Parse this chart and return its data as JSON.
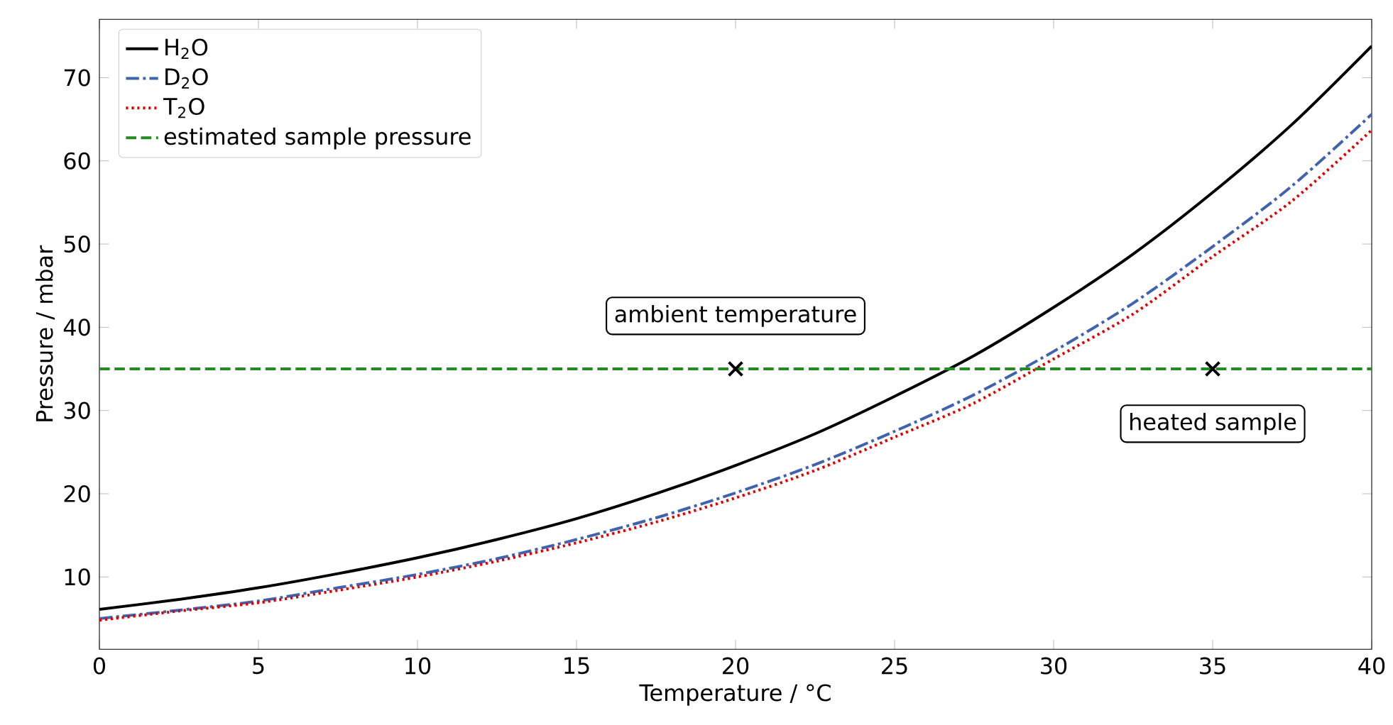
{
  "chart_data": {
    "type": "line",
    "xlabel": "Temperature / °C",
    "ylabel": "Pressure / mbar",
    "xlim": [
      0,
      40
    ],
    "ylim": [
      1.3,
      77
    ],
    "xticks": [
      0,
      5,
      10,
      15,
      20,
      25,
      30,
      35,
      40
    ],
    "yticks": [
      10,
      20,
      30,
      40,
      50,
      60,
      70
    ],
    "grid": false,
    "legend": "top left",
    "marker": "none",
    "series": [
      {
        "name": "H$_{2}$O",
        "color": "#000000",
        "line_style": "solid",
        "x": [
          0,
          2.5,
          5,
          7.5,
          10,
          12.5,
          15,
          17.5,
          20,
          22.5,
          25,
          27.5,
          30,
          32.5,
          35,
          37.5,
          40
        ],
        "values": [
          6.1,
          7.3,
          8.7,
          10.4,
          12.3,
          14.5,
          17.0,
          20.0,
          23.4,
          27.2,
          31.7,
          36.6,
          42.4,
          48.8,
          56.2,
          64.4,
          73.8
        ]
      },
      {
        "name": "D$_{2}$O",
        "color": "#4063b0",
        "line_style": "dashdot",
        "x": [
          0,
          2.5,
          5,
          7.5,
          10,
          12.5,
          15,
          17.5,
          20,
          22.5,
          25,
          27.5,
          30,
          32.5,
          35,
          37.5,
          40
        ],
        "values": [
          5.0,
          6.0,
          7.1,
          8.7,
          10.3,
          12.2,
          14.5,
          17.1,
          20.1,
          23.5,
          27.5,
          31.9,
          37.1,
          42.9,
          49.7,
          57.0,
          65.6
        ]
      },
      {
        "name": "T$_{2}$O",
        "color": "#e00000",
        "line_style": "dotted",
        "x": [
          0,
          2.5,
          5,
          7.5,
          10,
          12.5,
          15,
          17.5,
          20,
          22.5,
          25,
          27.5,
          30,
          32.5,
          35,
          37.5,
          40
        ],
        "values": [
          4.8,
          5.9,
          6.9,
          8.4,
          10.0,
          11.9,
          14.1,
          16.6,
          19.5,
          22.8,
          26.8,
          30.9,
          36.2,
          41.6,
          48.5,
          55.2,
          63.7
        ]
      },
      {
        "type": "scatter",
        "color": "#000000",
        "marker": "cross",
        "x": [
          20,
          35
        ],
        "values": [
          35,
          35
        ]
      }
    ],
    "ref_lines": [
      {
        "axis": "y",
        "value": 35,
        "label": "estimated sample pressure",
        "color": "#228b22",
        "line_style": "dashed"
      }
    ],
    "annotations": [
      {
        "text": "ambient temperature",
        "x": 20,
        "y": 35
      },
      {
        "text": "heated sample",
        "x": 35,
        "y": 35
      }
    ]
  }
}
